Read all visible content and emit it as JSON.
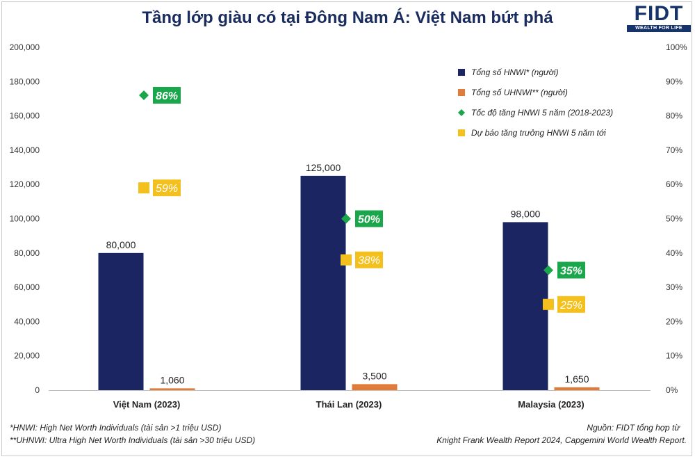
{
  "title": "Tầng lớp giàu có tại Đông Nam Á: Việt Nam bứt phá",
  "logo": {
    "mark": "FIDT",
    "tagline": "WEALTH FOR LIFE"
  },
  "colors": {
    "hnwi": "#1b2561",
    "uhnwi": "#e07b39",
    "growth": "#1aa64a",
    "forecast": "#f4c01e"
  },
  "chart_data": {
    "type": "bar",
    "categories": [
      "Việt Nam (2023)",
      "Thái Lan (2023)",
      "Malaysia (2023)"
    ],
    "y_left": {
      "range": [
        0,
        200000
      ],
      "ticks": [
        "0",
        "20,000",
        "40,000",
        "60,000",
        "80,000",
        "100,000",
        "120,000",
        "140,000",
        "160,000",
        "180,000",
        "200,000"
      ]
    },
    "y_right": {
      "range": [
        0,
        100
      ],
      "ticks": [
        "0%",
        "10%",
        "20%",
        "30%",
        "40%",
        "50%",
        "60%",
        "70%",
        "80%",
        "90%",
        "100%"
      ]
    },
    "series": [
      {
        "name": "Tổng số HNWI* (người)",
        "kind": "bar",
        "axis": "left",
        "values": [
          80000,
          125000,
          98000
        ],
        "labels": [
          "80,000",
          "125,000",
          "98,000"
        ]
      },
      {
        "name": "Tổng số UHNWI** (người)",
        "kind": "bar",
        "axis": "left",
        "values": [
          1060,
          3500,
          1650
        ],
        "labels": [
          "1,060",
          "3,500",
          "1,650"
        ]
      },
      {
        "name": "Tốc độ tăng HNWI 5 năm (2018-2023)",
        "kind": "diamond",
        "axis": "right",
        "values": [
          86,
          50,
          35
        ],
        "labels": [
          "86%",
          "50%",
          "35%"
        ]
      },
      {
        "name": "Dự báo tăng trưởng HNWI 5 năm tới",
        "kind": "square",
        "axis": "right",
        "values": [
          59,
          38,
          25
        ],
        "labels": [
          "59%",
          "38%",
          "25%"
        ]
      }
    ],
    "legend_position": "top-right",
    "grid": false
  },
  "footnotes": {
    "hnwi": "*HNWI: High Net Worth Individuals (tài sản >1 triệu USD)",
    "uhnwi": "**UHNWI: Ultra High Net Worth Individuals (tài sản >30 triệu USD)",
    "source_1": "Nguồn: FIDT tổng hợp từ",
    "source_2": "Knight Frank Wealth Report 2024, Capgemini World Wealth Report."
  }
}
